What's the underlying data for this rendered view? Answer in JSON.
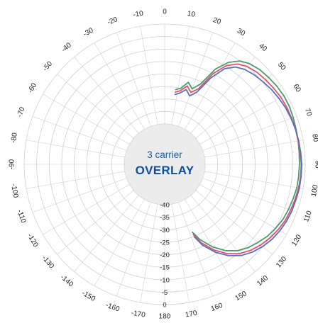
{
  "chart_data": {
    "type": "polar-line",
    "title": "",
    "center_label": {
      "line1": "3 carrier",
      "line2": "OVERLAY"
    },
    "angle_ticks": [
      0,
      10,
      20,
      30,
      40,
      50,
      60,
      70,
      80,
      90,
      100,
      110,
      120,
      130,
      140,
      150,
      160,
      170,
      180,
      -170,
      -160,
      -150,
      -140,
      -130,
      -120,
      -110,
      -100,
      -90,
      -80,
      -70,
      -60,
      -50,
      -40,
      -30,
      -20,
      -10
    ],
    "radial_ticks": [
      "-40",
      "-35",
      "-30",
      "-25",
      "-20",
      "-15",
      "-10",
      "-5",
      "0"
    ],
    "radial_range": [
      -40,
      0
    ],
    "angle_direction": "clockwise",
    "angle_zero": "top",
    "colors": {
      "red": "#e0536a",
      "green": "#4c9a6e",
      "blue": "#5a6fbf",
      "grid": "#d0d0d0",
      "center_fill": "#ececec"
    },
    "series": [
      {
        "color_key": "green",
        "points": [
          [
            8,
            -26
          ],
          [
            12,
            -25
          ],
          [
            16,
            -22
          ],
          [
            20,
            -24
          ],
          [
            24,
            -21
          ],
          [
            28,
            -13
          ],
          [
            32,
            -8
          ],
          [
            36,
            -5
          ],
          [
            40,
            -3.5
          ],
          [
            45,
            -2.5
          ],
          [
            50,
            -2
          ],
          [
            55,
            -1.5
          ],
          [
            60,
            -1.2
          ],
          [
            65,
            -1.2
          ],
          [
            70,
            -1.5
          ],
          [
            75,
            -1.8
          ],
          [
            80,
            -2
          ],
          [
            85,
            -2.2
          ],
          [
            90,
            -2.3
          ],
          [
            95,
            -2.4
          ],
          [
            100,
            -2.5
          ],
          [
            105,
            -3
          ],
          [
            110,
            -3.5
          ],
          [
            115,
            -4
          ],
          [
            120,
            -5
          ],
          [
            125,
            -6
          ],
          [
            130,
            -7.5
          ],
          [
            135,
            -9
          ],
          [
            140,
            -11
          ],
          [
            145,
            -14
          ],
          [
            150,
            -18
          ],
          [
            155,
            -23
          ],
          [
            158,
            -27
          ]
        ]
      },
      {
        "color_key": "red",
        "points": [
          [
            8,
            -27
          ],
          [
            12,
            -26
          ],
          [
            16,
            -23.5
          ],
          [
            20,
            -25.5
          ],
          [
            24,
            -23
          ],
          [
            28,
            -15
          ],
          [
            32,
            -9.5
          ],
          [
            36,
            -6.5
          ],
          [
            40,
            -5
          ],
          [
            45,
            -4
          ],
          [
            50,
            -3.5
          ],
          [
            55,
            -3
          ],
          [
            60,
            -2.5
          ],
          [
            65,
            -2.3
          ],
          [
            70,
            -2.2
          ],
          [
            75,
            -2
          ],
          [
            80,
            -2
          ],
          [
            85,
            -1.8
          ],
          [
            90,
            -1.6
          ],
          [
            95,
            -1.6
          ],
          [
            100,
            -1.8
          ],
          [
            105,
            -2.2
          ],
          [
            110,
            -2.6
          ],
          [
            115,
            -3
          ],
          [
            120,
            -3.8
          ],
          [
            125,
            -4.8
          ],
          [
            130,
            -6
          ],
          [
            135,
            -7.5
          ],
          [
            140,
            -9.5
          ],
          [
            145,
            -12.5
          ],
          [
            150,
            -16.5
          ],
          [
            155,
            -21.5
          ],
          [
            158,
            -26
          ]
        ]
      },
      {
        "color_key": "blue",
        "points": [
          [
            8,
            -28
          ],
          [
            12,
            -27
          ],
          [
            16,
            -25
          ],
          [
            20,
            -27
          ],
          [
            24,
            -24.5
          ],
          [
            28,
            -17
          ],
          [
            32,
            -11
          ],
          [
            36,
            -8
          ],
          [
            40,
            -6.5
          ],
          [
            45,
            -5.5
          ],
          [
            50,
            -4.8
          ],
          [
            55,
            -4
          ],
          [
            60,
            -3.4
          ],
          [
            65,
            -2.8
          ],
          [
            70,
            -2.4
          ],
          [
            75,
            -2
          ],
          [
            80,
            -1.8
          ],
          [
            85,
            -1.6
          ],
          [
            90,
            -1.4
          ],
          [
            95,
            -1.4
          ],
          [
            100,
            -1.5
          ],
          [
            105,
            -1.8
          ],
          [
            110,
            -2
          ],
          [
            115,
            -2.4
          ],
          [
            120,
            -3
          ],
          [
            125,
            -3.8
          ],
          [
            130,
            -5
          ],
          [
            135,
            -6.5
          ],
          [
            140,
            -8.5
          ],
          [
            145,
            -11.5
          ],
          [
            150,
            -15.5
          ],
          [
            155,
            -20.5
          ],
          [
            158,
            -25
          ]
        ]
      }
    ],
    "grid": true,
    "legend": "none"
  }
}
